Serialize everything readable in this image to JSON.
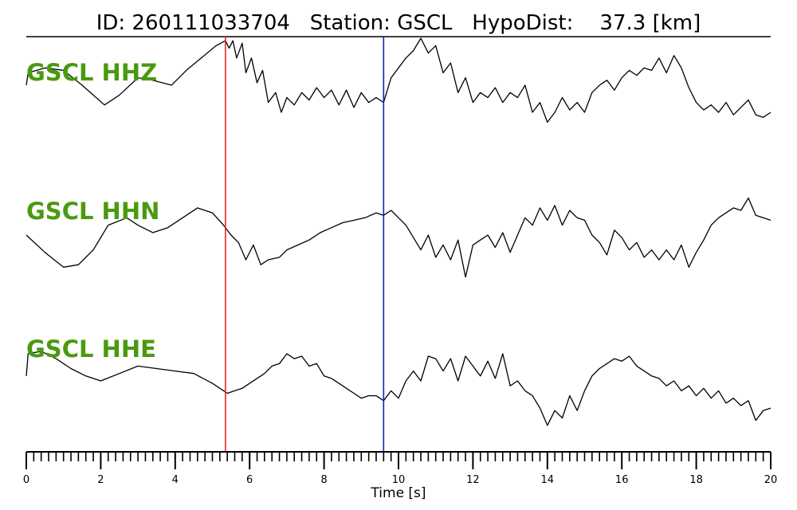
{
  "chart_data": {
    "type": "line",
    "title": "ID: 260111033704   Station: GSCL   HypoDist:    37.3 [km]",
    "xlabel": "Time [s]",
    "xlim": [
      0,
      20
    ],
    "x_ticks": [
      "0",
      "2",
      "4",
      "6",
      "8",
      "10",
      "12",
      "14",
      "16",
      "18",
      "20"
    ],
    "minor_tick_step": 0.2,
    "label_color": "#4a9a10",
    "trace_color": "#000000",
    "markers": [
      {
        "name": "P pick",
        "t": 5.35,
        "color": "#e8241c"
      },
      {
        "name": "S pick",
        "t": 9.6,
        "color": "#1020c0"
      }
    ],
    "series": [
      {
        "name": "GSCL HHZ",
        "x": [
          0,
          0.05,
          0.5,
          1,
          1.5,
          2.1,
          2.5,
          3,
          3.4,
          3.9,
          4.3,
          4.7,
          5.1,
          5.35,
          5.45,
          5.55,
          5.65,
          5.8,
          5.9,
          6.05,
          6.2,
          6.35,
          6.5,
          6.7,
          6.85,
          7.0,
          7.2,
          7.4,
          7.6,
          7.8,
          8.0,
          8.2,
          8.4,
          8.6,
          8.8,
          9.0,
          9.2,
          9.4,
          9.6,
          9.8,
          10.0,
          10.2,
          10.4,
          10.6,
          10.8,
          11.0,
          11.2,
          11.4,
          11.6,
          11.8,
          12.0,
          12.2,
          12.4,
          12.6,
          12.8,
          13.0,
          13.2,
          13.4,
          13.6,
          13.8,
          14.0,
          14.2,
          14.4,
          14.6,
          14.8,
          15.0,
          15.2,
          15.4,
          15.6,
          15.8,
          16.0,
          16.2,
          16.4,
          16.6,
          16.8,
          17.0,
          17.2,
          17.4,
          17.6,
          17.8,
          18.0,
          18.2,
          18.4,
          18.6,
          18.8,
          19.0,
          19.2,
          19.4,
          19.6,
          19.8,
          20.0
        ],
        "y": [
          0.05,
          0.3,
          0.4,
          0.35,
          0.05,
          -0.35,
          -0.15,
          0.2,
          0.15,
          0.05,
          0.35,
          0.6,
          0.85,
          0.95,
          0.8,
          0.95,
          0.6,
          0.9,
          0.3,
          0.6,
          0.1,
          0.35,
          -0.3,
          -0.1,
          -0.5,
          -0.2,
          -0.35,
          -0.1,
          -0.25,
          0.0,
          -0.2,
          -0.05,
          -0.35,
          -0.05,
          -0.4,
          -0.1,
          -0.3,
          -0.2,
          -0.3,
          0.2,
          0.4,
          0.6,
          0.75,
          1.0,
          0.7,
          0.85,
          0.3,
          0.5,
          -0.1,
          0.2,
          -0.3,
          -0.1,
          -0.2,
          0.0,
          -0.3,
          -0.1,
          -0.2,
          0.05,
          -0.5,
          -0.3,
          -0.7,
          -0.5,
          -0.2,
          -0.45,
          -0.3,
          -0.5,
          -0.1,
          0.05,
          0.15,
          -0.05,
          0.2,
          0.35,
          0.25,
          0.4,
          0.35,
          0.6,
          0.3,
          0.65,
          0.4,
          0.0,
          -0.3,
          -0.45,
          -0.35,
          -0.5,
          -0.3,
          -0.55,
          -0.4,
          -0.25,
          -0.55,
          -0.6,
          -0.5
        ]
      },
      {
        "name": "GSCL HHN",
        "x": [
          0,
          0.5,
          1,
          1.4,
          1.8,
          2.2,
          2.7,
          3.0,
          3.4,
          3.8,
          4.2,
          4.6,
          5.0,
          5.3,
          5.5,
          5.7,
          5.9,
          6.1,
          6.3,
          6.5,
          6.8,
          7.0,
          7.3,
          7.6,
          7.9,
          8.2,
          8.5,
          8.8,
          9.1,
          9.4,
          9.6,
          9.8,
          10.0,
          10.2,
          10.4,
          10.6,
          10.8,
          11.0,
          11.2,
          11.4,
          11.6,
          11.8,
          12.0,
          12.2,
          12.4,
          12.6,
          12.8,
          13.0,
          13.2,
          13.4,
          13.6,
          13.8,
          14.0,
          14.2,
          14.4,
          14.6,
          14.8,
          15.0,
          15.2,
          15.4,
          15.6,
          15.8,
          16.0,
          16.2,
          16.4,
          16.6,
          16.8,
          17.0,
          17.2,
          17.4,
          17.6,
          17.8,
          18.0,
          18.2,
          18.4,
          18.6,
          18.8,
          19.0,
          19.2,
          19.4,
          19.6,
          19.8,
          20.0
        ],
        "y": [
          0.0,
          -0.35,
          -0.65,
          -0.6,
          -0.3,
          0.2,
          0.35,
          0.2,
          0.05,
          0.15,
          0.35,
          0.55,
          0.45,
          0.2,
          0.0,
          -0.15,
          -0.5,
          -0.2,
          -0.6,
          -0.5,
          -0.45,
          -0.3,
          -0.2,
          -0.1,
          0.05,
          0.15,
          0.25,
          0.3,
          0.35,
          0.45,
          0.4,
          0.5,
          0.35,
          0.2,
          -0.05,
          -0.3,
          0.0,
          -0.45,
          -0.2,
          -0.5,
          -0.1,
          -0.85,
          -0.2,
          -0.1,
          0.0,
          -0.25,
          0.05,
          -0.35,
          0.0,
          0.35,
          0.2,
          0.55,
          0.3,
          0.6,
          0.2,
          0.5,
          0.35,
          0.3,
          0.0,
          -0.15,
          -0.4,
          0.1,
          -0.05,
          -0.3,
          -0.15,
          -0.45,
          -0.3,
          -0.5,
          -0.3,
          -0.5,
          -0.2,
          -0.65,
          -0.35,
          -0.1,
          0.2,
          0.35,
          0.45,
          0.55,
          0.5,
          0.75,
          0.4,
          0.35,
          0.3
        ]
      },
      {
        "name": "GSCL HHE",
        "x": [
          0,
          0.05,
          0.4,
          0.8,
          1.2,
          1.6,
          2.0,
          2.5,
          3.0,
          3.5,
          4.0,
          4.5,
          5.0,
          5.4,
          5.6,
          5.8,
          6.0,
          6.2,
          6.4,
          6.6,
          6.8,
          7.0,
          7.2,
          7.4,
          7.6,
          7.8,
          8.0,
          8.2,
          8.4,
          8.6,
          8.8,
          9.0,
          9.2,
          9.4,
          9.6,
          9.8,
          10.0,
          10.2,
          10.4,
          10.6,
          10.8,
          11.0,
          11.2,
          11.4,
          11.6,
          11.8,
          12.0,
          12.2,
          12.4,
          12.6,
          12.8,
          13.0,
          13.2,
          13.4,
          13.6,
          13.8,
          14.0,
          14.2,
          14.4,
          14.6,
          14.8,
          15.0,
          15.2,
          15.4,
          15.6,
          15.8,
          16.0,
          16.2,
          16.4,
          16.6,
          16.8,
          17.0,
          17.2,
          17.4,
          17.6,
          17.8,
          18.0,
          18.2,
          18.4,
          18.6,
          18.8,
          19.0,
          19.2,
          19.4,
          19.6,
          19.8,
          20.0
        ],
        "y": [
          0.1,
          0.55,
          0.6,
          0.45,
          0.25,
          0.1,
          0.0,
          0.15,
          0.3,
          0.25,
          0.2,
          0.15,
          -0.05,
          -0.25,
          -0.2,
          -0.15,
          -0.05,
          0.05,
          0.15,
          0.3,
          0.35,
          0.55,
          0.45,
          0.5,
          0.3,
          0.35,
          0.1,
          0.05,
          -0.05,
          -0.15,
          -0.25,
          -0.35,
          -0.3,
          -0.3,
          -0.4,
          -0.2,
          -0.35,
          0.0,
          0.2,
          0.0,
          0.5,
          0.45,
          0.2,
          0.45,
          0.0,
          0.5,
          0.3,
          0.1,
          0.4,
          0.05,
          0.55,
          -0.1,
          0.0,
          -0.2,
          -0.3,
          -0.55,
          -0.9,
          -0.6,
          -0.75,
          -0.3,
          -0.6,
          -0.2,
          0.1,
          0.25,
          0.35,
          0.45,
          0.4,
          0.5,
          0.3,
          0.2,
          0.1,
          0.05,
          -0.1,
          0.0,
          -0.2,
          -0.1,
          -0.3,
          -0.15,
          -0.35,
          -0.2,
          -0.45,
          -0.35,
          -0.5,
          -0.4,
          -0.8,
          -0.6,
          -0.55
        ]
      }
    ]
  }
}
